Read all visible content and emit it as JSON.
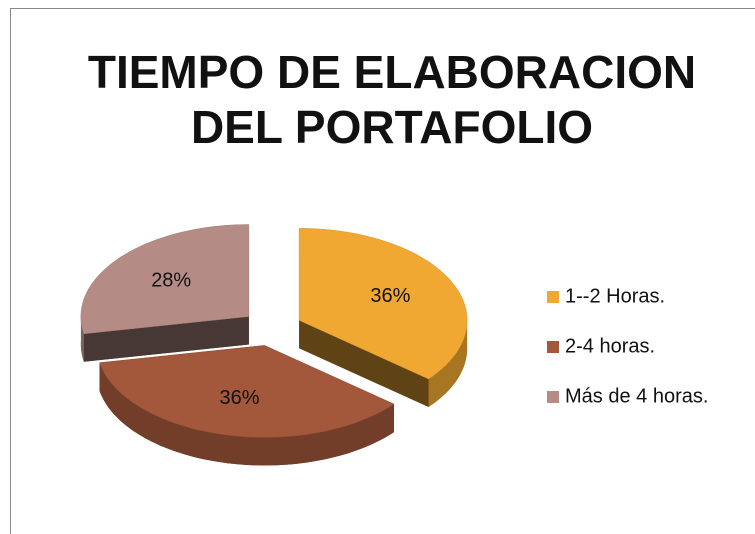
{
  "chart_data": {
    "type": "pie3d",
    "title": [
      "TIEMPO DE ELABORACION",
      "DEL PORTAFOLIO"
    ],
    "categories": [
      "1--2 Horas.",
      "2-4 horas.",
      "Más de 4 horas."
    ],
    "values": [
      36,
      36,
      28
    ],
    "value_labels": [
      "36%",
      "36%",
      "28%"
    ],
    "colors": [
      "#f0a832",
      "#a3573b",
      "#b58c85"
    ],
    "legend": "right"
  }
}
